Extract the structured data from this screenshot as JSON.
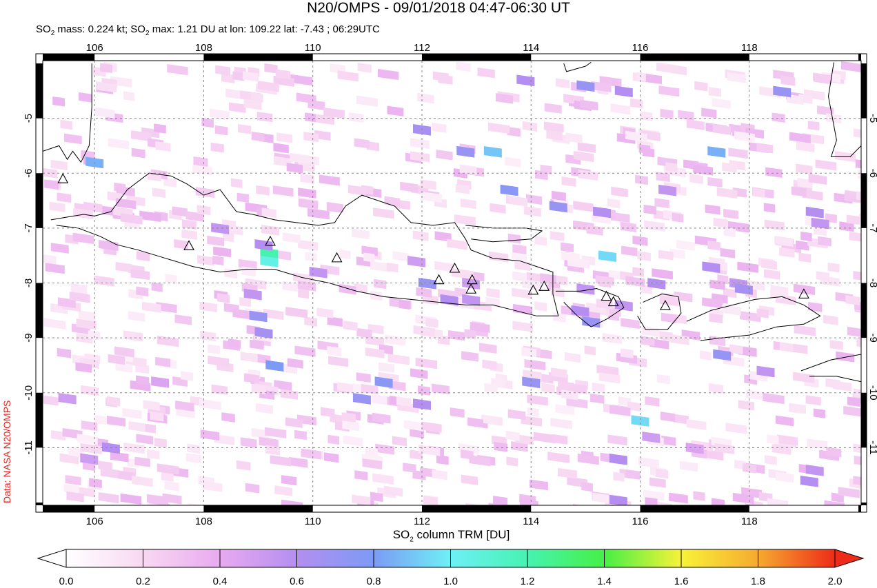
{
  "title": "N20/OMPS - 09/01/2018 04:47-06:30 UT",
  "subtitle": {
    "p1": "SO",
    "p2": " mass: 0.224 kt; SO",
    "p3": " max: 1.21 DU at lon: 109.22 lat: -7.43 ; 06:29UTC",
    "sub": "2"
  },
  "credit": "Data: NASA N20/OMPS",
  "colorbar": {
    "label_pre": "SO",
    "label_sub": "2",
    "label_post": " column TRM [DU]",
    "ticks": [
      "0.0",
      "0.2",
      "0.4",
      "0.6",
      "0.8",
      "1.0",
      "1.2",
      "1.4",
      "1.6",
      "1.8",
      "2.0"
    ]
  },
  "map": {
    "lon_ticks": [
      "106",
      "108",
      "110",
      "112",
      "114",
      "116",
      "118"
    ],
    "lat_ticks": [
      "-5",
      "-6",
      "-7",
      "-8",
      "-9",
      "-10",
      "-11"
    ],
    "lon_values": [
      106,
      108,
      110,
      112,
      114,
      116,
      118
    ],
    "lat_values": [
      -5,
      -6,
      -7,
      -8,
      -9,
      -10,
      -11
    ],
    "lon_range": [
      105.05,
      120.05
    ],
    "lat_range": [
      -12.05,
      -3.95
    ],
    "volcanoes": [
      [
        105.42,
        -6.1
      ],
      [
        107.73,
        -7.32
      ],
      [
        109.22,
        -7.24
      ],
      [
        110.44,
        -7.54
      ],
      [
        112.31,
        -7.94
      ],
      [
        112.6,
        -7.73
      ],
      [
        112.92,
        -7.94
      ],
      [
        112.9,
        -8.11
      ],
      [
        114.04,
        -8.13
      ],
      [
        114.24,
        -8.06
      ],
      [
        115.38,
        -8.24
      ],
      [
        115.51,
        -8.34
      ],
      [
        116.46,
        -8.41
      ],
      [
        119.0,
        -8.2
      ]
    ],
    "max_pixel": {
      "lon": 109.22,
      "lat": -7.43,
      "value": 1.21
    },
    "so2_pixels": [
      [
        106.0,
        -5.8,
        0.85
      ],
      [
        109.2,
        -7.45,
        1.21
      ],
      [
        109.2,
        -7.6,
        1.05
      ],
      [
        109.1,
        -7.3,
        0.6
      ],
      [
        108.9,
        -8.2,
        0.55
      ],
      [
        109.0,
        -8.6,
        0.7
      ],
      [
        109.1,
        -8.9,
        0.65
      ],
      [
        109.3,
        -9.5,
        0.8
      ],
      [
        111.3,
        -9.8,
        0.75
      ],
      [
        110.9,
        -10.1,
        0.7
      ],
      [
        112.0,
        -10.2,
        0.6
      ],
      [
        112.1,
        -8.0,
        0.7
      ],
      [
        112.5,
        -8.3,
        0.6
      ],
      [
        112.9,
        -8.3,
        0.55
      ],
      [
        112.0,
        -5.2,
        0.65
      ],
      [
        112.8,
        -5.6,
        0.7
      ],
      [
        113.3,
        -5.6,
        0.9
      ],
      [
        113.6,
        -6.3,
        0.75
      ],
      [
        114.5,
        -6.6,
        0.7
      ],
      [
        115.3,
        -6.7,
        0.6
      ],
      [
        115.0,
        -4.4,
        0.7
      ],
      [
        115.7,
        -4.5,
        0.6
      ],
      [
        116.5,
        -6.3,
        0.55
      ],
      [
        117.4,
        -5.6,
        0.85
      ],
      [
        118.6,
        -4.5,
        0.7
      ],
      [
        119.2,
        -6.7,
        0.6
      ],
      [
        119.3,
        -6.9,
        0.55
      ],
      [
        115.4,
        -7.5,
        0.95
      ],
      [
        115.0,
        -8.1,
        0.55
      ],
      [
        116.3,
        -8.0,
        0.6
      ],
      [
        115.1,
        -8.7,
        0.7
      ],
      [
        114.9,
        -8.5,
        0.6
      ],
      [
        115.7,
        -8.4,
        0.55
      ],
      [
        117.8,
        -8.0,
        0.55
      ],
      [
        117.5,
        -9.3,
        0.7
      ],
      [
        118.3,
        -9.6,
        0.55
      ],
      [
        114.0,
        -9.8,
        0.7
      ],
      [
        116.0,
        -10.5,
        0.95
      ],
      [
        115.6,
        -11.2,
        0.6
      ],
      [
        116.2,
        -10.8,
        0.5
      ],
      [
        117.0,
        -11.0,
        0.45
      ],
      [
        119.2,
        -11.4,
        0.55
      ],
      [
        119.1,
        -11.6,
        0.6
      ],
      [
        115.6,
        -11.95,
        0.6
      ],
      [
        112.9,
        -8.0,
        0.5
      ],
      [
        110.1,
        -7.8,
        0.55
      ],
      [
        108.3,
        -7.0,
        0.55
      ],
      [
        106.3,
        -11.0,
        0.6
      ],
      [
        105.9,
        -11.2,
        0.5
      ],
      [
        105.5,
        -10.1,
        0.5
      ],
      [
        117.3,
        -7.7,
        0.6
      ],
      [
        117.9,
        -8.1,
        0.65
      ],
      [
        113.9,
        -4.3,
        0.6
      ],
      [
        111.9,
        -7.6,
        0.5
      ],
      [
        107.2,
        -9.8,
        0.45
      ]
    ],
    "coast": [
      [
        [
          105.2,
          -6.85
        ],
        [
          105.5,
          -6.8
        ],
        [
          105.8,
          -6.75
        ],
        [
          106.0,
          -6.78
        ],
        [
          106.3,
          -6.7
        ],
        [
          106.6,
          -6.3
        ],
        [
          107.0,
          -6.0
        ],
        [
          107.4,
          -6.05
        ],
        [
          107.7,
          -6.2
        ],
        [
          108.0,
          -6.4
        ],
        [
          108.3,
          -6.3
        ],
        [
          108.6,
          -6.7
        ],
        [
          108.9,
          -6.75
        ],
        [
          109.3,
          -6.85
        ],
        [
          109.7,
          -6.9
        ],
        [
          110.1,
          -6.95
        ],
        [
          110.4,
          -6.9
        ],
        [
          110.6,
          -6.6
        ],
        [
          110.9,
          -6.4
        ],
        [
          111.2,
          -6.5
        ],
        [
          111.5,
          -6.6
        ],
        [
          111.8,
          -6.9
        ],
        [
          112.2,
          -6.95
        ],
        [
          112.6,
          -6.9
        ],
        [
          112.8,
          -7.2
        ],
        [
          112.9,
          -7.4
        ],
        [
          113.3,
          -7.55
        ],
        [
          113.8,
          -7.6
        ],
        [
          114.1,
          -7.7
        ],
        [
          114.4,
          -7.8
        ],
        [
          114.4,
          -8.2
        ],
        [
          114.5,
          -8.6
        ],
        [
          114.1,
          -8.6
        ],
        [
          113.7,
          -8.5
        ],
        [
          113.3,
          -8.4
        ],
        [
          112.8,
          -8.4
        ],
        [
          112.3,
          -8.35
        ],
        [
          111.8,
          -8.3
        ],
        [
          111.3,
          -8.25
        ],
        [
          110.8,
          -8.15
        ],
        [
          110.3,
          -8.0
        ],
        [
          109.8,
          -7.9
        ],
        [
          109.3,
          -7.75
        ],
        [
          108.8,
          -7.75
        ],
        [
          108.3,
          -7.8
        ],
        [
          107.8,
          -7.7
        ],
        [
          107.3,
          -7.55
        ],
        [
          106.8,
          -7.4
        ],
        [
          106.4,
          -7.3
        ],
        [
          106.1,
          -7.15
        ],
        [
          105.7,
          -7.0
        ],
        [
          105.3,
          -6.95
        ]
      ],
      [
        [
          112.8,
          -6.95
        ],
        [
          113.3,
          -7.0
        ],
        [
          113.9,
          -7.0
        ],
        [
          114.2,
          -7.05
        ],
        [
          114.0,
          -7.2
        ],
        [
          113.3,
          -7.25
        ],
        [
          112.9,
          -7.2
        ]
      ],
      [
        [
          114.45,
          -8.15
        ],
        [
          114.9,
          -8.15
        ],
        [
          115.2,
          -8.1
        ],
        [
          115.6,
          -8.25
        ],
        [
          115.7,
          -8.45
        ],
        [
          115.4,
          -8.65
        ],
        [
          115.1,
          -8.8
        ],
        [
          114.85,
          -8.6
        ],
        [
          114.6,
          -8.35
        ]
      ],
      [
        [
          116.05,
          -8.35
        ],
        [
          116.4,
          -8.2
        ],
        [
          116.7,
          -8.25
        ],
        [
          116.75,
          -8.55
        ],
        [
          116.5,
          -8.85
        ],
        [
          116.1,
          -8.85
        ],
        [
          115.95,
          -8.6
        ]
      ],
      [
        [
          116.85,
          -8.7
        ],
        [
          117.3,
          -8.5
        ],
        [
          117.7,
          -8.4
        ],
        [
          118.1,
          -8.3
        ],
        [
          118.6,
          -8.25
        ],
        [
          119.0,
          -8.4
        ],
        [
          119.3,
          -8.6
        ],
        [
          119.0,
          -8.75
        ],
        [
          118.5,
          -8.8
        ],
        [
          118.0,
          -8.95
        ],
        [
          117.5,
          -9.0
        ],
        [
          117.1,
          -9.05
        ]
      ],
      [
        [
          118.95,
          -9.6
        ],
        [
          119.5,
          -9.4
        ],
        [
          120.05,
          -9.3
        ],
        [
          120.05,
          -9.8
        ],
        [
          119.6,
          -9.7
        ],
        [
          119.1,
          -9.7
        ]
      ],
      [
        [
          105.95,
          -4.0
        ],
        [
          105.95,
          -4.8
        ],
        [
          105.9,
          -5.5
        ],
        [
          105.75,
          -5.8
        ],
        [
          105.6,
          -5.6
        ],
        [
          105.5,
          -5.75
        ],
        [
          105.35,
          -5.5
        ],
        [
          105.05,
          -5.6
        ]
      ],
      [
        [
          114.6,
          -4.0
        ],
        [
          114.65,
          -4.15
        ],
        [
          115.0,
          -4.05
        ],
        [
          115.1,
          -3.98
        ]
      ],
      [
        [
          119.55,
          -3.98
        ],
        [
          119.45,
          -4.6
        ],
        [
          119.6,
          -5.4
        ],
        [
          119.5,
          -5.7
        ],
        [
          119.85,
          -5.7
        ],
        [
          120.05,
          -5.5
        ]
      ]
    ]
  }
}
